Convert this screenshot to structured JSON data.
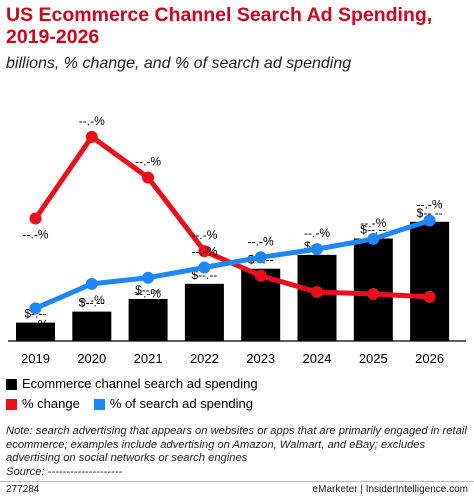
{
  "header": {
    "title": "US Ecommerce Channel Search Ad Spending, 2019-2026",
    "subtitle": "billions, % change, and % of search ad spending"
  },
  "chart_data": {
    "type": "bar",
    "categories": [
      "2019",
      "2020",
      "2021",
      "2022",
      "2023",
      "2024",
      "2025",
      "2026"
    ],
    "series": [
      {
        "name": "Ecommerce channel search ad spending",
        "kind": "bar",
        "color": "#000000",
        "values": [
          4.5,
          7.2,
          10.3,
          14.0,
          17.7,
          21.1,
          25.1,
          29.2
        ],
        "labels": [
          "$-.--",
          "$--.--",
          "$--.--",
          "$--.--",
          "$--.--",
          "$--.--",
          "$--.--",
          "$--.--"
        ]
      },
      {
        "name": "% change",
        "kind": "line",
        "color": "#e8101b",
        "values": [
          30.0,
          50.0,
          40.0,
          22.0,
          16.0,
          12.0,
          11.5,
          10.8
        ],
        "labels": [
          "--.-%",
          "--.-%",
          "--.-%",
          "--.-%",
          "--.-%",
          "--.-%",
          "--.-%",
          "--.-%"
        ]
      },
      {
        "name": "% of search ad spending",
        "kind": "line",
        "color": "#1e87f5",
        "values": [
          8.0,
          14.0,
          15.5,
          18.0,
          20.5,
          22.5,
          25.0,
          29.5
        ],
        "labels": [
          "--.-%",
          "--.-%",
          "--.-%",
          "--.-%",
          "--.-%",
          "--.-%",
          "--.-%",
          "--.-%"
        ]
      }
    ],
    "label_positions": {
      "bar": "top",
      "% change": [
        "below",
        "above",
        "above",
        "above",
        "below",
        "below",
        "below",
        "below"
      ],
      "% of search ad spending": [
        "below",
        "below",
        "below",
        "above",
        "above",
        "above",
        "above",
        "above"
      ]
    },
    "ylim": [
      0,
      60
    ],
    "grid": false,
    "legend": "bottom-left"
  },
  "notes": {
    "text": "Note: search advertising that appears on websites or apps that are primarily engaged in retail ecommerce; examples include advertising on Amazon, Walmart, and eBay; excludes advertising on social networks or search engines",
    "source": "Source: --------------------"
  },
  "footer": {
    "id": "277284",
    "brand": "eMarketer  |  InsiderIntelligence.com"
  }
}
